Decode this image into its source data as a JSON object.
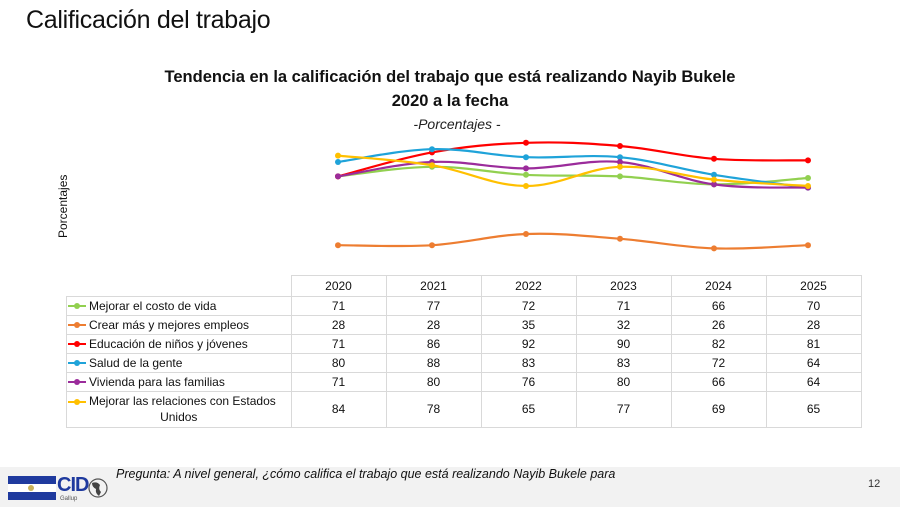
{
  "slide": {
    "title": "Calificación del trabajo",
    "page_number": "12"
  },
  "footer": {
    "question": "Pregunta: A nivel general, ¿cómo califica el trabajo que está realizando Nayib Bukele para",
    "logo_text": "CID",
    "logo_subtext": "Gallup"
  },
  "chart_data": {
    "type": "line",
    "title_line1": "Tendencia en la calificación del trabajo que está realizando Nayib Bukele",
    "title_line2": "2020 a la fecha",
    "subtitle": "-Porcentajes -",
    "xlabel": "",
    "ylabel": "Porcentajes",
    "ylim": [
      0,
      100
    ],
    "grid": false,
    "legend": "table-below",
    "categories": [
      "2020",
      "2021",
      "2022",
      "2023",
      "2024",
      "2025"
    ],
    "series": [
      {
        "name": "Mejorar el costo de vida",
        "color": "#92d050",
        "values": [
          71,
          77,
          72,
          71,
          66,
          70
        ]
      },
      {
        "name": "Crear más y mejores empleos",
        "color": "#ed7d31",
        "values": [
          28,
          28,
          35,
          32,
          26,
          28
        ]
      },
      {
        "name": "Educación de niños y jóvenes",
        "color": "#ff0000",
        "values": [
          71,
          86,
          92,
          90,
          82,
          81
        ]
      },
      {
        "name": "Salud de la gente",
        "color": "#1fa3d9",
        "values": [
          80,
          88,
          83,
          83,
          72,
          64
        ]
      },
      {
        "name": "Vivienda para las familias",
        "color": "#9b2c9b",
        "values": [
          71,
          80,
          76,
          80,
          66,
          64
        ]
      },
      {
        "name": "Mejorar las relaciones con Estados Unidos",
        "color": "#ffc000",
        "values": [
          84,
          78,
          65,
          77,
          69,
          65
        ]
      }
    ]
  }
}
